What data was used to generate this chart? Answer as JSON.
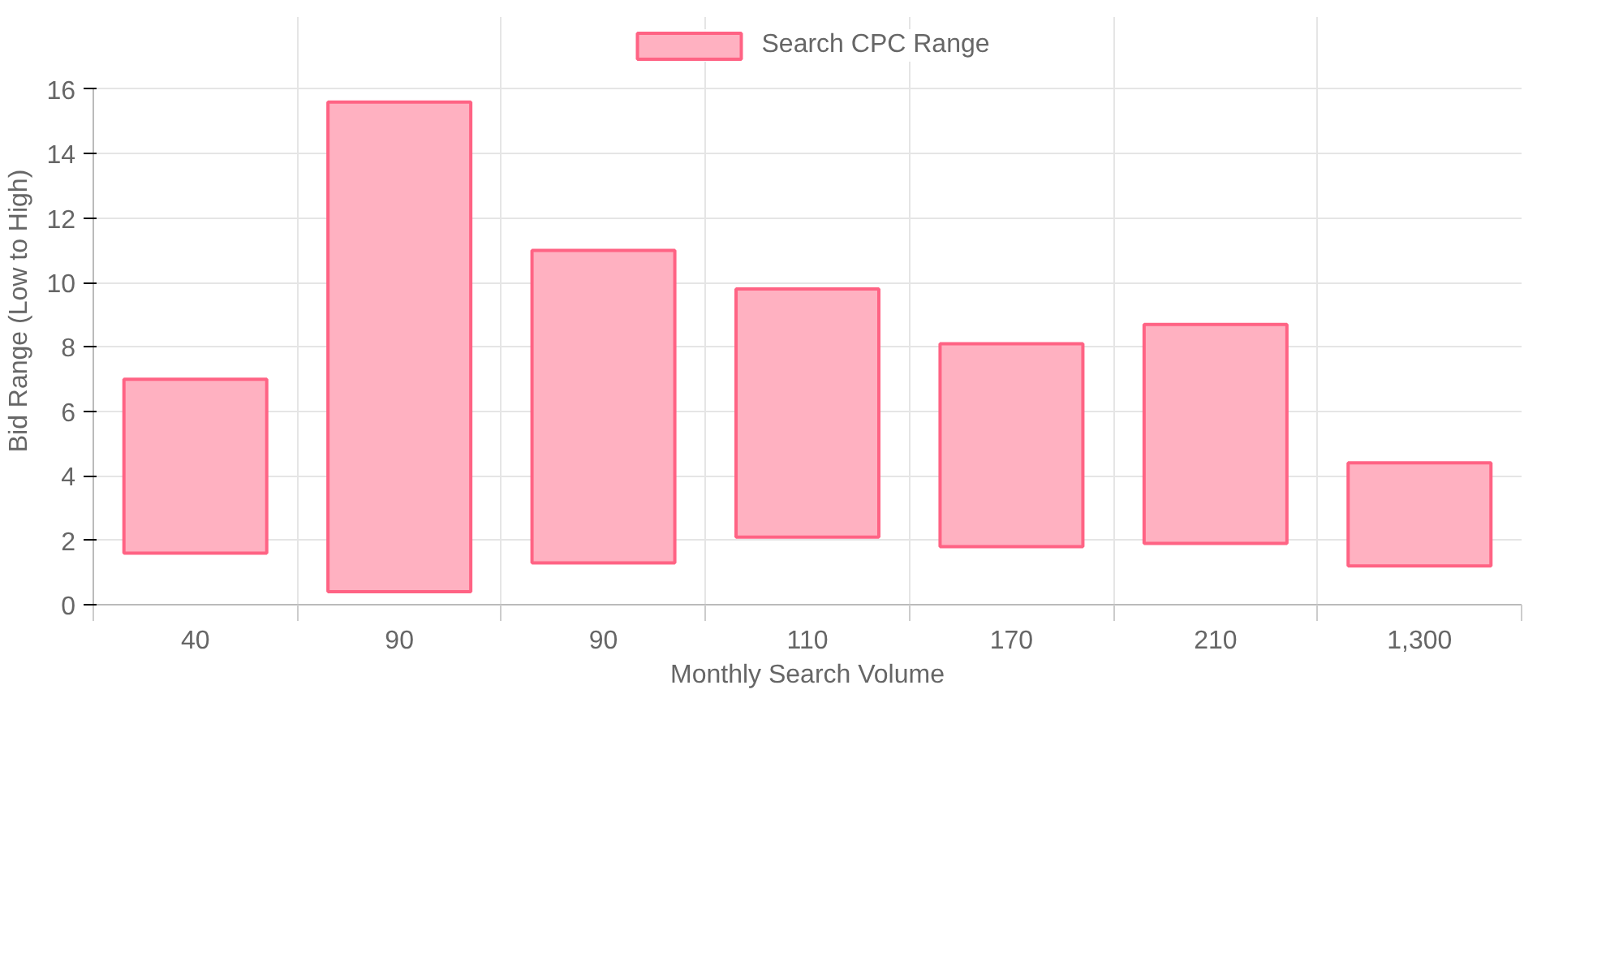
{
  "chart_data": {
    "type": "bar",
    "xlabel": "Monthly Search Volume",
    "ylabel": "Bid Range (Low to High)",
    "categories": [
      "40",
      "90",
      "90",
      "110",
      "170",
      "210",
      "1,300"
    ],
    "series": [
      {
        "name": "Search CPC Range",
        "color": "#ffb1c1",
        "base": [
          1.6,
          0.4,
          1.3,
          2.1,
          1.8,
          1.9,
          1.2
        ],
        "values": [
          5.4,
          15.2,
          9.7,
          7.7,
          6.3,
          6.8,
          3.2
        ]
      }
    ],
    "ylim": [
      0,
      16
    ],
    "yticks": [
      0,
      2,
      4,
      6,
      8,
      10,
      12,
      14,
      16
    ],
    "grid": true,
    "legend": "top"
  }
}
